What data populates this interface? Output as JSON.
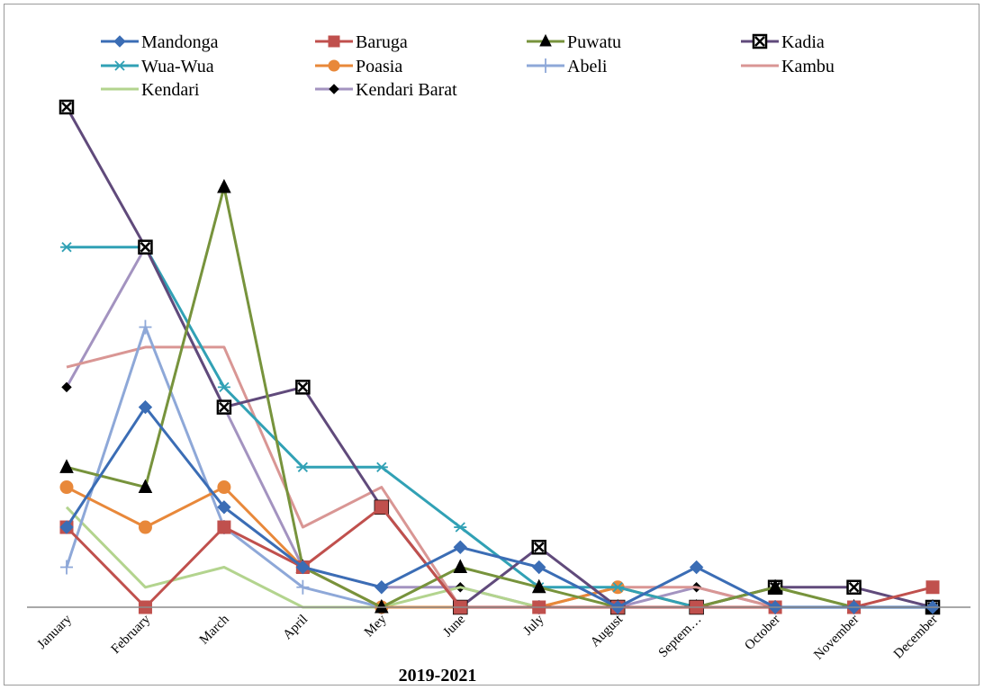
{
  "chart_data": {
    "type": "line",
    "title": "",
    "xlabel": "2019-2021",
    "ylabel": "",
    "ylim": [
      0,
      25
    ],
    "grid": false,
    "legend_position": "top",
    "categories": [
      "January",
      "February",
      "March",
      "April",
      "Mey",
      "June",
      "July",
      "August",
      "Septem…",
      "October",
      "November",
      "December"
    ],
    "series": [
      {
        "name": "Mandonga",
        "color": "#3b6db5",
        "marker": "diamond",
        "values": [
          4,
          10,
          5,
          2,
          1,
          3,
          2,
          0,
          2,
          0,
          0,
          0
        ]
      },
      {
        "name": "Baruga",
        "color": "#c0504d",
        "marker": "square",
        "values": [
          4,
          0,
          4,
          2,
          5,
          0,
          0,
          0,
          0,
          0,
          0,
          1
        ]
      },
      {
        "name": "Puwatu",
        "color": "#77933c",
        "marker": "triangle",
        "values": [
          7,
          6,
          21,
          2,
          0,
          2,
          1,
          0,
          0,
          1,
          0,
          0
        ]
      },
      {
        "name": "Kadia",
        "color": "#604a7b",
        "marker": "boxx",
        "values": [
          25,
          18,
          10,
          11,
          5,
          0,
          3,
          0,
          0,
          1,
          1,
          0
        ]
      },
      {
        "name": "Wua-Wua",
        "color": "#31a1b5",
        "marker": "asterisk",
        "values": [
          18,
          18,
          11,
          7,
          7,
          4,
          1,
          1,
          0,
          0,
          0,
          0
        ]
      },
      {
        "name": "Poasia",
        "color": "#e8883a",
        "marker": "circle",
        "values": [
          6,
          4,
          6,
          2,
          0,
          0,
          0,
          1,
          0,
          0,
          0,
          0
        ]
      },
      {
        "name": "Abeli",
        "color": "#8ea8d8",
        "marker": "plus",
        "values": [
          2,
          14,
          4,
          1,
          0,
          0,
          0,
          0,
          0,
          0,
          0,
          0
        ]
      },
      {
        "name": "Kambu",
        "color": "#d99694",
        "marker": "none",
        "values": [
          12,
          13,
          13,
          4,
          6,
          0,
          0,
          1,
          1,
          0,
          0,
          0
        ]
      },
      {
        "name": "Kendari",
        "color": "#b3d48e",
        "marker": "none",
        "values": [
          5,
          1,
          2,
          0,
          0,
          1,
          0,
          1,
          0,
          1,
          0,
          0
        ]
      },
      {
        "name": "Kendari Barat",
        "color": "#a393c0",
        "marker": "smalldiamond",
        "markerColor": "#000000",
        "values": [
          11,
          18,
          10,
          2,
          1,
          1,
          0,
          0,
          1,
          0,
          0,
          0
        ]
      }
    ]
  }
}
